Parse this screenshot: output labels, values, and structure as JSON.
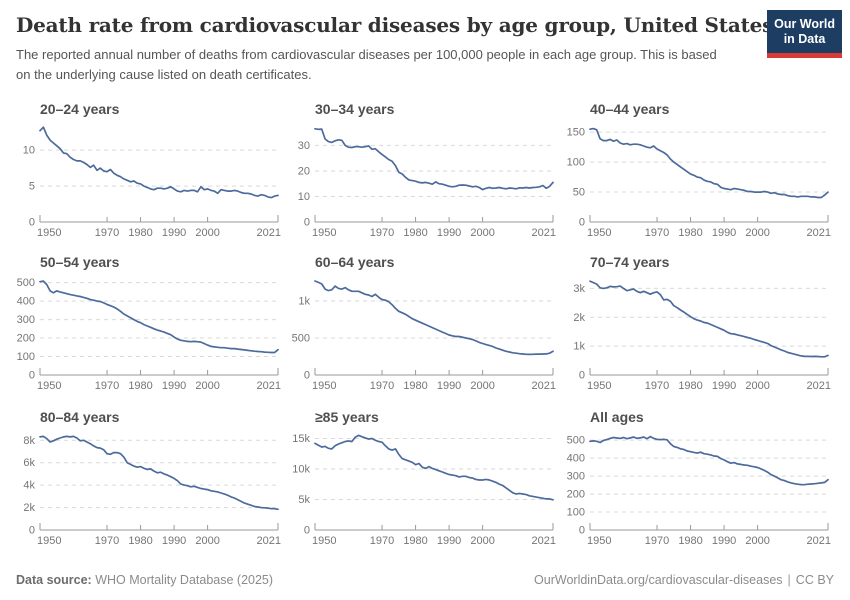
{
  "header": {
    "title": "Death rate from cardiovascular diseases by age group, United States",
    "subtitle": "The reported annual number of deaths from cardiovascular diseases per 100,000 people in each age group. This is based on the underlying cause listed on death certificates.",
    "logo_line1": "Our World",
    "logo_line2": "in Data"
  },
  "colors": {
    "line": "#4c6a9c",
    "gridline": "#d9d9d9",
    "axis": "#9a9a9a",
    "tick_text": "#757575",
    "logo_bg": "#1d3d63",
    "logo_stripe": "#d93a35"
  },
  "chart_data": [
    {
      "type": "line",
      "title": "20–24 years",
      "xlabel": "",
      "ylabel": "",
      "x_range": [
        1950,
        2021
      ],
      "xticks": [
        1950,
        1970,
        1980,
        1990,
        2000,
        2021
      ],
      "ylim": [
        0,
        13.5
      ],
      "yticks": [
        [
          5,
          "5"
        ],
        [
          10,
          "10"
        ]
      ],
      "values": [
        12.7,
        13.2,
        12.1,
        11.4,
        11.0,
        10.6,
        10.2,
        9.6,
        9.5,
        9.0,
        8.7,
        8.5,
        8.5,
        8.3,
        8.0,
        7.6,
        7.9,
        7.2,
        7.5,
        7.1,
        7.0,
        7.3,
        6.8,
        6.5,
        6.3,
        6.0,
        5.8,
        5.6,
        5.7,
        5.4,
        5.3,
        5.0,
        4.8,
        4.6,
        4.5,
        4.7,
        4.7,
        4.6,
        4.7,
        4.9,
        4.6,
        4.3,
        4.2,
        4.4,
        4.3,
        4.4,
        4.4,
        4.2,
        4.9,
        4.5,
        4.6,
        4.4,
        4.3,
        4.0,
        4.5,
        4.4,
        4.3,
        4.3,
        4.4,
        4.3,
        4.1,
        4.0,
        4.0,
        3.9,
        3.7,
        3.6,
        3.8,
        3.7,
        3.5,
        3.4,
        3.6,
        3.7
      ]
    },
    {
      "type": "line",
      "title": "30–34 years",
      "xlabel": "",
      "ylabel": "",
      "x_range": [
        1950,
        2021
      ],
      "xticks": [
        1950,
        1970,
        1980,
        1990,
        2000,
        2021
      ],
      "ylim": [
        0,
        38
      ],
      "yticks": [
        [
          10,
          "10"
        ],
        [
          20,
          "20"
        ],
        [
          30,
          "30"
        ]
      ],
      "values": [
        36.5,
        36.3,
        36.4,
        32.5,
        31.5,
        31.2,
        31.8,
        32.2,
        32.0,
        30.0,
        29.3,
        29.2,
        29.5,
        29.5,
        29.3,
        29.5,
        29.8,
        28.5,
        28.7,
        27.5,
        26.5,
        25.5,
        24.5,
        23.8,
        22.0,
        19.5,
        18.8,
        17.5,
        16.5,
        16.2,
        16.0,
        15.5,
        15.3,
        15.5,
        15.2,
        14.8,
        15.7,
        15.0,
        14.8,
        14.4,
        14.0,
        13.8,
        14.0,
        14.4,
        14.5,
        14.4,
        14.1,
        13.8,
        14.0,
        13.5,
        12.7,
        13.2,
        13.5,
        13.2,
        13.3,
        13.5,
        13.2,
        13.0,
        13.3,
        13.2,
        13.0,
        13.4,
        13.3,
        13.5,
        13.3,
        13.5,
        13.6,
        13.8,
        14.3,
        13.2,
        14.0,
        15.5
      ]
    },
    {
      "type": "line",
      "title": "40–44 years",
      "xlabel": "",
      "ylabel": "",
      "x_range": [
        1950,
        2021
      ],
      "xticks": [
        1950,
        1970,
        1980,
        1990,
        2000,
        2021
      ],
      "ylim": [
        0,
        162
      ],
      "yticks": [
        [
          50,
          "50"
        ],
        [
          100,
          "100"
        ],
        [
          150,
          "150"
        ]
      ],
      "values": [
        155,
        156,
        154,
        139,
        136,
        136,
        138,
        135,
        137,
        132,
        130,
        131,
        129,
        130,
        130,
        129,
        127,
        125,
        124,
        127,
        122,
        119,
        116,
        112,
        105,
        100,
        96,
        92,
        88,
        84,
        80,
        78,
        75,
        74,
        70,
        68,
        67,
        64,
        63,
        58,
        56,
        55,
        54,
        56,
        55,
        54,
        53,
        51,
        51,
        50,
        50,
        50,
        51,
        50,
        48,
        49,
        47,
        46,
        46,
        44,
        43,
        43,
        42,
        43,
        43,
        43,
        42,
        42,
        41,
        41,
        45,
        50
      ]
    },
    {
      "type": "line",
      "title": "50–54 years",
      "xlabel": "",
      "ylabel": "",
      "x_range": [
        1950,
        2021
      ],
      "xticks": [
        1950,
        1970,
        1980,
        1990,
        2000,
        2021
      ],
      "ylim": [
        0,
        525
      ],
      "yticks": [
        [
          100,
          "100"
        ],
        [
          200,
          "200"
        ],
        [
          300,
          "300"
        ],
        [
          400,
          "400"
        ],
        [
          500,
          "500"
        ]
      ],
      "values": [
        505,
        508,
        490,
        455,
        445,
        455,
        450,
        445,
        440,
        435,
        432,
        428,
        425,
        420,
        415,
        408,
        405,
        400,
        398,
        390,
        382,
        375,
        368,
        358,
        345,
        330,
        320,
        310,
        300,
        290,
        283,
        273,
        265,
        258,
        250,
        243,
        238,
        232,
        225,
        218,
        205,
        195,
        188,
        185,
        182,
        180,
        182,
        180,
        178,
        170,
        162,
        155,
        152,
        150,
        148,
        148,
        145,
        143,
        143,
        140,
        138,
        136,
        133,
        131,
        129,
        127,
        126,
        124,
        123,
        122,
        122,
        137
      ]
    },
    {
      "type": "line",
      "title": "60–64 years",
      "xlabel": "",
      "ylabel": "",
      "x_range": [
        1950,
        2021
      ],
      "xticks": [
        1950,
        1970,
        1980,
        1990,
        2000,
        2021
      ],
      "ylim": [
        0,
        1310
      ],
      "yticks": [
        [
          500,
          "500"
        ],
        [
          1000,
          "1k"
        ]
      ],
      "values": [
        1270,
        1250,
        1230,
        1160,
        1140,
        1150,
        1200,
        1170,
        1160,
        1180,
        1150,
        1130,
        1130,
        1130,
        1110,
        1090,
        1080,
        1060,
        1090,
        1050,
        1020,
        1010,
        990,
        950,
        900,
        860,
        840,
        820,
        790,
        760,
        740,
        720,
        700,
        680,
        660,
        640,
        620,
        600,
        580,
        560,
        540,
        530,
        520,
        520,
        510,
        500,
        490,
        480,
        460,
        440,
        425,
        410,
        400,
        385,
        365,
        350,
        335,
        320,
        310,
        300,
        295,
        288,
        283,
        280,
        278,
        280,
        282,
        282,
        283,
        285,
        295,
        320
      ]
    },
    {
      "type": "line",
      "title": "70–74 years",
      "xlabel": "",
      "ylabel": "",
      "x_range": [
        1950,
        2021
      ],
      "xticks": [
        1950,
        1970,
        1980,
        1990,
        2000,
        2021
      ],
      "ylim": [
        0,
        3360
      ],
      "yticks": [
        [
          1000,
          "1k"
        ],
        [
          2000,
          "2k"
        ],
        [
          3000,
          "3k"
        ]
      ],
      "values": [
        3250,
        3200,
        3150,
        3020,
        3000,
        3020,
        3070,
        3050,
        3060,
        3080,
        3000,
        2920,
        2950,
        2980,
        2900,
        2850,
        2900,
        2850,
        2800,
        2850,
        2880,
        2780,
        2600,
        2620,
        2550,
        2400,
        2330,
        2250,
        2180,
        2100,
        2020,
        1950,
        1900,
        1870,
        1820,
        1800,
        1750,
        1700,
        1650,
        1600,
        1550,
        1480,
        1430,
        1420,
        1390,
        1360,
        1330,
        1300,
        1270,
        1230,
        1200,
        1160,
        1130,
        1090,
        1020,
        970,
        920,
        870,
        830,
        780,
        750,
        720,
        690,
        660,
        645,
        645,
        640,
        645,
        640,
        630,
        630,
        680
      ]
    },
    {
      "type": "line",
      "title": "80–84 years",
      "xlabel": "",
      "ylabel": "",
      "x_range": [
        1950,
        2021
      ],
      "xticks": [
        1950,
        1970,
        1980,
        1990,
        2000,
        2021
      ],
      "ylim": [
        0,
        8650
      ],
      "yticks": [
        [
          2000,
          "2k"
        ],
        [
          4000,
          "4k"
        ],
        [
          6000,
          "6k"
        ],
        [
          8000,
          "8k"
        ]
      ],
      "values": [
        8300,
        8350,
        8150,
        7850,
        7950,
        8100,
        8200,
        8300,
        8350,
        8300,
        8350,
        8200,
        7950,
        8000,
        7850,
        7700,
        7500,
        7350,
        7300,
        7150,
        6800,
        6750,
        6900,
        6900,
        6800,
        6500,
        6000,
        5850,
        5700,
        5600,
        5650,
        5500,
        5400,
        5450,
        5250,
        5100,
        5150,
        5000,
        4900,
        4750,
        4600,
        4400,
        4100,
        4000,
        3950,
        3850,
        3900,
        3800,
        3700,
        3650,
        3600,
        3500,
        3450,
        3400,
        3300,
        3200,
        3100,
        2950,
        2850,
        2700,
        2550,
        2400,
        2300,
        2200,
        2100,
        2050,
        2000,
        1980,
        1950,
        1900,
        1900,
        1850
      ]
    },
    {
      "type": "line",
      "title": "≥85 years",
      "xlabel": "",
      "ylabel": "",
      "x_range": [
        1950,
        2021
      ],
      "xticks": [
        1950,
        1970,
        1980,
        1990,
        2000,
        2021
      ],
      "ylim": [
        0,
        15900
      ],
      "yticks": [
        [
          5000,
          "5k"
        ],
        [
          10000,
          "10k"
        ],
        [
          15000,
          "15k"
        ]
      ],
      "values": [
        14200,
        13900,
        13600,
        13700,
        13400,
        13300,
        13800,
        14100,
        14300,
        14500,
        14600,
        14500,
        15200,
        15500,
        15300,
        15100,
        14900,
        15000,
        14700,
        14500,
        14400,
        13800,
        13300,
        13100,
        13300,
        12400,
        11700,
        11500,
        11300,
        11100,
        10700,
        10900,
        10300,
        10100,
        10400,
        10100,
        9900,
        9700,
        9500,
        9300,
        9100,
        9000,
        8900,
        8700,
        8800,
        8800,
        8600,
        8500,
        8300,
        8200,
        8200,
        8300,
        8200,
        8000,
        7800,
        7500,
        7300,
        6900,
        6500,
        6100,
        5900,
        6000,
        5900,
        5800,
        5600,
        5500,
        5400,
        5300,
        5200,
        5100,
        5100,
        4950
      ]
    },
    {
      "type": "line",
      "title": "All ages",
      "xlabel": "",
      "ylabel": "",
      "x_range": [
        1950,
        2021
      ],
      "xticks": [
        1950,
        1970,
        1980,
        1990,
        2000,
        2021
      ],
      "ylim": [
        0,
        540
      ],
      "yticks": [
        [
          100,
          "100"
        ],
        [
          200,
          "200"
        ],
        [
          300,
          "300"
        ],
        [
          400,
          "400"
        ],
        [
          500,
          "500"
        ]
      ],
      "values": [
        494,
        496,
        494,
        487,
        498,
        503,
        510,
        515,
        512,
        510,
        515,
        508,
        512,
        518,
        510,
        513,
        518,
        508,
        520,
        510,
        505,
        503,
        505,
        502,
        480,
        465,
        460,
        452,
        448,
        440,
        436,
        432,
        428,
        433,
        425,
        422,
        418,
        412,
        410,
        398,
        390,
        380,
        372,
        375,
        368,
        365,
        362,
        360,
        355,
        352,
        348,
        340,
        332,
        322,
        308,
        300,
        290,
        280,
        275,
        268,
        262,
        258,
        255,
        253,
        252,
        255,
        256,
        258,
        260,
        262,
        265,
        280
      ]
    }
  ],
  "footer": {
    "source_label": "Data source:",
    "source_value": " WHO Mortality Database (2025)",
    "link": "OurWorldinData.org/cardiovascular-diseases",
    "separator": "|",
    "license": "CC BY"
  }
}
